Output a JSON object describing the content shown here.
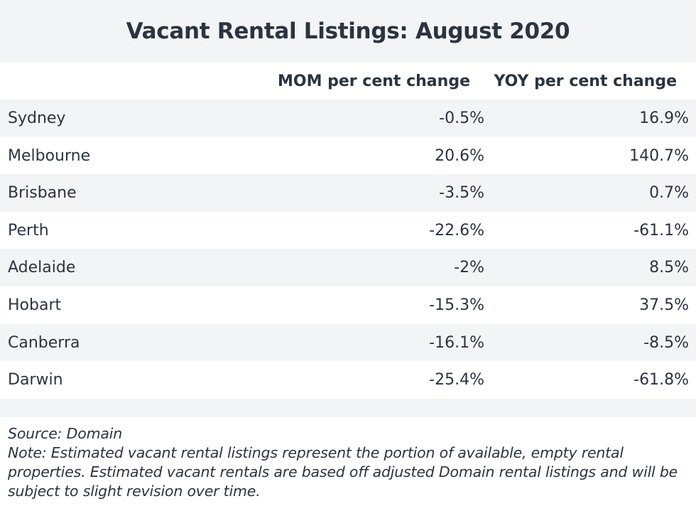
{
  "chart_data": {
    "type": "table",
    "title": "Vacant Rental Listings: August 2020",
    "columns": [
      "MOM per cent change",
      "YOY per cent change"
    ],
    "rows": [
      {
        "city": "Sydney",
        "mom": "-0.5%",
        "yoy": "16.9%"
      },
      {
        "city": "Melbourne",
        "mom": "20.6%",
        "yoy": "140.7%"
      },
      {
        "city": "Brisbane",
        "mom": "-3.5%",
        "yoy": "0.7%"
      },
      {
        "city": "Perth",
        "mom": "-22.6%",
        "yoy": "-61.1%"
      },
      {
        "city": "Adelaide",
        "mom": "-2%",
        "yoy": "8.5%"
      },
      {
        "city": "Hobart",
        "mom": "-15.3%",
        "yoy": "37.5%"
      },
      {
        "city": "Canberra",
        "mom": "-16.1%",
        "yoy": "-8.5%"
      },
      {
        "city": "Darwin",
        "mom": "-25.4%",
        "yoy": "-61.8%"
      }
    ]
  },
  "footer": {
    "source": "Source: Domain",
    "note": "Note: Estimated vacant rental listings represent the portion of available, empty rental properties. Estimated vacant rentals are based off adjusted Domain rental listings and will be subject to slight revision over time."
  },
  "colors": {
    "band": "#f3f4f6",
    "text": "#2b3440"
  }
}
